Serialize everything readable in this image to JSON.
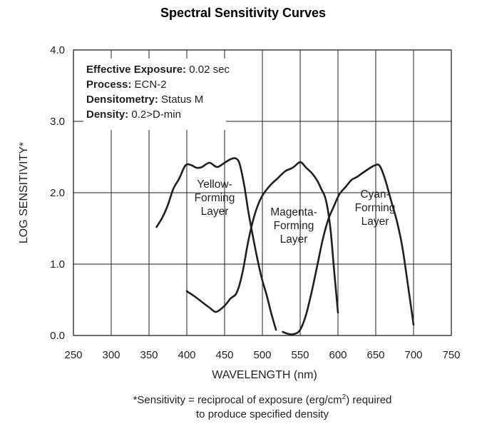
{
  "chart_data": {
    "type": "line",
    "title": "Spectral Sensitivity Curves",
    "xlabel": "WAVELENGTH (nm)",
    "ylabel": "LOG SENSITIVITY*",
    "xlim": [
      250,
      750
    ],
    "ylim": [
      0.0,
      4.0
    ],
    "x_ticks": [
      "250",
      "300",
      "350",
      "400",
      "450",
      "500",
      "550",
      "600",
      "650",
      "700",
      "750"
    ],
    "y_ticks": [
      "0.0",
      "1.0",
      "2.0",
      "3.0",
      "4.0"
    ],
    "grid": true,
    "line_color": "#231f20",
    "annotations": [
      {
        "label": "Effective Exposure:",
        "value": " 0.02 sec"
      },
      {
        "label": "Process:",
        "value": " ECN-2"
      },
      {
        "label": "Densitometry:",
        "value": " Status M"
      },
      {
        "label": "Density:",
        "value": " 0.2>D-min"
      }
    ],
    "series": [
      {
        "name": "Yellow-Forming Layer",
        "label_lines": [
          "Yellow-",
          "Forming",
          "Layer"
        ],
        "x": [
          360,
          368,
          375,
          382,
          390,
          398,
          405,
          413,
          420,
          430,
          440,
          450,
          458,
          465,
          470,
          476,
          482,
          490,
          498,
          506,
          512,
          518
        ],
        "y": [
          1.52,
          1.66,
          1.83,
          2.05,
          2.2,
          2.38,
          2.39,
          2.35,
          2.36,
          2.42,
          2.36,
          2.42,
          2.47,
          2.48,
          2.4,
          2.1,
          1.7,
          1.25,
          0.85,
          0.55,
          0.3,
          0.08
        ]
      },
      {
        "name": "Magenta-Forming Layer",
        "label_lines": [
          "Magenta-",
          "Forming",
          "Layer"
        ],
        "x": [
          400,
          410,
          420,
          430,
          438,
          445,
          452,
          458,
          465,
          470,
          475,
          480,
          485,
          490,
          495,
          500,
          510,
          520,
          530,
          540,
          548,
          552,
          558,
          565,
          572,
          578,
          584,
          590,
          595,
          600
        ],
        "y": [
          0.62,
          0.55,
          0.47,
          0.39,
          0.33,
          0.37,
          0.44,
          0.52,
          0.58,
          0.72,
          0.95,
          1.25,
          1.5,
          1.7,
          1.85,
          1.96,
          2.1,
          2.2,
          2.3,
          2.35,
          2.42,
          2.42,
          2.35,
          2.28,
          2.18,
          2.05,
          1.9,
          1.5,
          0.9,
          0.32
        ]
      },
      {
        "name": "Cyan-Forming Layer",
        "label_lines": [
          "Cyan-",
          "Forming",
          "Layer"
        ],
        "x": [
          527,
          535,
          542,
          550,
          558,
          566,
          573,
          580,
          587,
          595,
          602,
          610,
          618,
          625,
          633,
          640,
          648,
          655,
          662,
          670,
          678,
          685,
          692,
          700
        ],
        "y": [
          0.05,
          0.02,
          0.02,
          0.08,
          0.3,
          0.65,
          1.0,
          1.35,
          1.62,
          1.82,
          1.98,
          2.08,
          2.18,
          2.22,
          2.28,
          2.33,
          2.38,
          2.38,
          2.2,
          1.9,
          1.6,
          1.25,
          0.75,
          0.15
        ]
      }
    ],
    "footnote_lines": [
      "*Sensitivity = reciprocal of exposure (erg/cm",
      ") required",
      "to produce specified density"
    ],
    "footnote_superscript": "2"
  }
}
